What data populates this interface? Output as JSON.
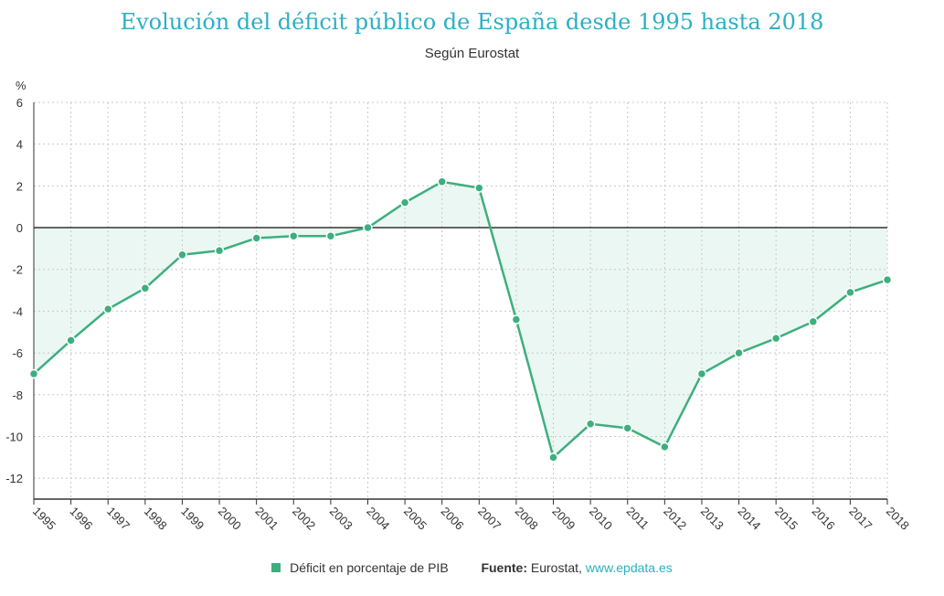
{
  "colors": {
    "title": "#2bb0c4",
    "line": "#3daf7e",
    "area": "#3daf7e",
    "link": "#2bb0c4",
    "axis": "#333333",
    "grid": "#c8c8c8"
  },
  "header": {
    "title": "Evolución del déficit público de España desde 1995 hasta 2018",
    "subtitle": "Según Eurostat"
  },
  "chart_data": {
    "type": "area",
    "title": "Evolución del déficit público de España desde 1995 hasta 2018",
    "subtitle": "Según Eurostat",
    "ylabel": "%",
    "xlabel": "",
    "ylim": [
      -13,
      6
    ],
    "yticks": [
      6,
      4,
      2,
      0,
      -2,
      -4,
      -6,
      -8,
      -10,
      -12
    ],
    "ytick_labels": [
      "6",
      "4",
      "2",
      "0",
      "-2",
      "-4",
      "-6",
      "-8",
      "-10",
      "-12"
    ],
    "grid": true,
    "legend": "bottom",
    "categories": [
      "1995",
      "1996",
      "1997",
      "1998",
      "1999",
      "2000",
      "2001",
      "2002",
      "2003",
      "2004",
      "2005",
      "2006",
      "2007",
      "2008",
      "2009",
      "2010",
      "2011",
      "2012",
      "2013",
      "2014",
      "2015",
      "2016",
      "2017",
      "2018"
    ],
    "series": [
      {
        "name": "Déficit en porcentaje de PIB",
        "values": [
          -7.0,
          -5.4,
          -3.9,
          -2.9,
          -1.3,
          -1.1,
          -0.5,
          -0.4,
          -0.4,
          0.0,
          1.2,
          2.2,
          1.9,
          -4.4,
          -11.0,
          -9.4,
          -9.6,
          -10.5,
          -7.0,
          -6.0,
          -5.3,
          -4.5,
          -3.1,
          -2.5
        ]
      }
    ]
  },
  "footer": {
    "legend_label": "Déficit en porcentaje de PIB",
    "source_label": "Fuente:",
    "source_text": "Eurostat,",
    "source_link": "www.epdata.es"
  }
}
